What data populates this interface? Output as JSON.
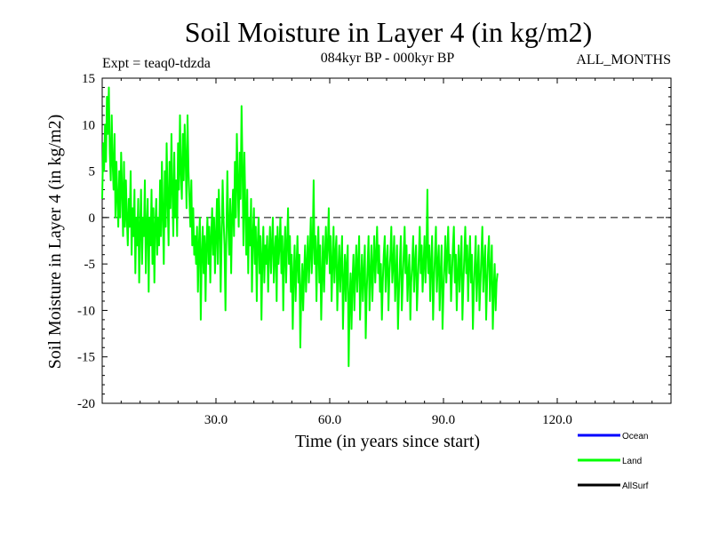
{
  "chart_data": {
    "type": "line",
    "title": "Soil Moisture in Layer 4 (in kg/m2)",
    "subtitle_left": "Expt = teaq0-tdzda",
    "subtitle_center": "084kyr BP - 000kyr BP",
    "subtitle_right": "ALL_MONTHS",
    "xlabel": "Time (in years since start)",
    "ylabel": "Soil Moisture in Layer 4 (in kg/m2)",
    "xlim": [
      0,
      150
    ],
    "ylim": [
      -20,
      15
    ],
    "x_ticks": [
      30,
      60,
      90,
      120
    ],
    "x_tick_labels": [
      "30.0",
      "60.0",
      "90.0",
      "120.0"
    ],
    "y_ticks": [
      15,
      10,
      5,
      0,
      -5,
      -10,
      -15,
      -20
    ],
    "y_tick_labels": [
      "15",
      "10",
      "5",
      "0",
      "-5",
      "-10",
      "-15",
      "-20"
    ],
    "zero_line": true,
    "legend": [
      {
        "name": "Ocean",
        "color": "#0000ff"
      },
      {
        "name": "Land",
        "color": "#00ff00"
      },
      {
        "name": "AllSurf",
        "color": "#000000"
      }
    ],
    "series": [
      {
        "name": "Land",
        "color": "#00ff00",
        "x_start": 0,
        "x_step": 0.25,
        "values": [
          2,
          8,
          5,
          10,
          6,
          13,
          9,
          14,
          7,
          4,
          11,
          6,
          3,
          9,
          0,
          6,
          2,
          -1,
          5,
          0,
          7,
          3,
          -2,
          6,
          -1,
          4,
          0,
          -3,
          2,
          -1,
          5,
          -4,
          1,
          -2,
          3,
          -6,
          0,
          -3,
          2,
          -7,
          -1,
          3,
          -5,
          0,
          -2,
          4,
          -6,
          -1,
          2,
          -8,
          0,
          -3,
          3,
          -5,
          1,
          -7,
          -1,
          2,
          -4,
          0,
          -3,
          4,
          -2,
          6,
          0,
          -5,
          5,
          -1,
          8,
          2,
          -3,
          6,
          1,
          9,
          3,
          -2,
          7,
          0,
          4,
          -2,
          8,
          3,
          11,
          5,
          2,
          9,
          4,
          10,
          6,
          1,
          11,
          5,
          2,
          -1,
          4,
          -3,
          1,
          -4,
          -2,
          -5,
          -1,
          -8,
          -3,
          0,
          -11,
          -4,
          -1,
          -6,
          -2,
          -9,
          -3,
          0,
          -5,
          -1,
          -7,
          -2,
          1,
          -4,
          0,
          -6,
          -2,
          2,
          -5,
          3,
          -1,
          -8,
          -2,
          4,
          0,
          -3,
          -10,
          -2,
          5,
          -1,
          -4,
          2,
          -6,
          0,
          3,
          -2,
          6,
          0,
          9,
          4,
          -1,
          7,
          2,
          12,
          5,
          -3,
          7,
          1,
          -4,
          3,
          -6,
          0,
          -3,
          2,
          -8,
          -2,
          1,
          -5,
          -1,
          -9,
          -3,
          0,
          -6,
          -2,
          -11,
          -4,
          -1,
          -7,
          -3,
          -5,
          -2,
          -8,
          -4,
          -1,
          -6,
          -3,
          0,
          -7,
          -4,
          -2,
          -9,
          -1,
          -5,
          -3,
          0,
          -6,
          -2,
          -10,
          -4,
          -1,
          -7,
          -3,
          1,
          -5,
          -2,
          -8,
          -4,
          -12,
          -6,
          -3,
          -9,
          -5,
          -2,
          -7,
          -4,
          -14,
          -8,
          -5,
          -10,
          -6,
          -3,
          -8,
          -5,
          -2,
          -7,
          -4,
          0,
          -6,
          -3,
          4,
          -5,
          -2,
          -9,
          -4,
          -1,
          -7,
          -3,
          -11,
          -6,
          -2,
          -8,
          -4,
          -1,
          -5,
          -3,
          1,
          -6,
          -2,
          -9,
          -5,
          -1,
          -7,
          -4,
          -2,
          -10,
          -6,
          -3,
          -8,
          -5,
          -2,
          -12,
          -7,
          -4,
          -9,
          -5,
          -3,
          -16,
          -9,
          -6,
          -12,
          -7,
          -4,
          -10,
          -6,
          -3,
          -8,
          -5,
          -2,
          -11,
          -7,
          -4,
          -9,
          -6,
          -3,
          -13,
          -8,
          -5,
          -2,
          -10,
          -6,
          -3,
          -9,
          -5,
          -2,
          -7,
          -4,
          -1,
          -6,
          -3,
          -8,
          -5,
          -11,
          -7,
          -4,
          -2,
          -8,
          -5,
          -3,
          -10,
          -6,
          -4,
          -1,
          -7,
          -5,
          -2,
          -9,
          -6,
          -3,
          -12,
          -8,
          -5,
          -2,
          -10,
          -7,
          -4,
          -1,
          -6,
          -3,
          -9,
          -6,
          -4,
          -11,
          -7,
          -5,
          -2,
          -8,
          -5,
          -3,
          -10,
          -7,
          -4,
          -1,
          -6,
          -3,
          -8,
          -5,
          -2,
          -7,
          -4,
          3,
          -6,
          -3,
          -9,
          -5,
          -2,
          -11,
          -7,
          -4,
          -1,
          -8,
          -5,
          -3,
          -10,
          -6,
          -3,
          -12,
          -8,
          -5,
          -2,
          -7,
          -4,
          -1,
          -6,
          -4,
          -9,
          -6,
          -3,
          -1,
          -7,
          -4,
          -10,
          -6,
          -3,
          -8,
          -5,
          -2,
          -11,
          -7,
          -4,
          -1,
          -6,
          -3,
          -9,
          -5,
          -2,
          -7,
          -4,
          -12,
          -8,
          -5,
          -2,
          -9,
          -6,
          -3,
          -10,
          -7,
          -4,
          -1,
          -8,
          -5,
          -3,
          -11,
          -7,
          -4,
          -2,
          -9,
          -6,
          -3,
          -12,
          -8,
          -5,
          -10,
          -7,
          -6
        ]
      }
    ]
  }
}
